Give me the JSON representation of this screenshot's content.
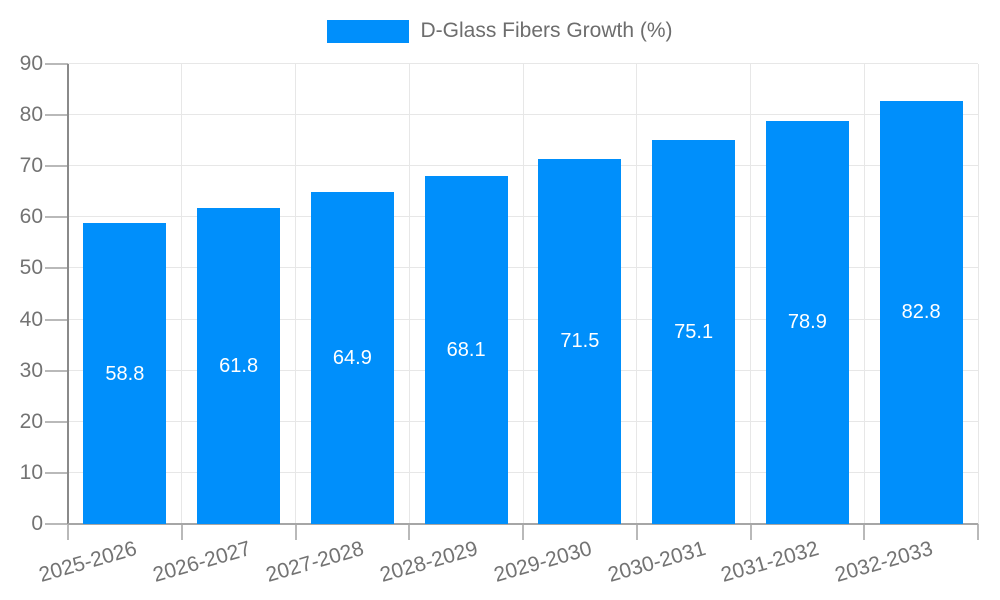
{
  "legend": {
    "label": "D-Glass Fibers Growth (%)"
  },
  "colors": {
    "bar": "#008FFB",
    "grid": "#e7e7e7",
    "baseline": "#a6a6a6",
    "axis_line": "#8a8a8a",
    "tick": "#b9b9b9",
    "axis_label": "#737373",
    "legend_text": "#6d6d6d",
    "data_label": "#ffffff"
  },
  "chart_data": {
    "type": "bar",
    "title": "D-Glass Fibers Growth (%)",
    "series_name": "D-Glass Fibers Growth (%)",
    "categories": [
      "2025-2026",
      "2026-2027",
      "2027-2028",
      "2028-2029",
      "2029-2030",
      "2030-2031",
      "2031-2032",
      "2032-2033"
    ],
    "values": [
      58.8,
      61.8,
      64.9,
      68.1,
      71.5,
      75.1,
      78.9,
      82.8
    ],
    "value_labels": [
      "58.8",
      "61.8",
      "64.9",
      "68.1",
      "71.5",
      "75.1",
      "78.9",
      "82.8"
    ],
    "xlabel": "",
    "ylabel": "",
    "ylim": [
      0,
      90
    ],
    "yticks": [
      0,
      10,
      20,
      30,
      40,
      50,
      60,
      70,
      80,
      90
    ],
    "grid": "both",
    "legend_position": "top"
  }
}
